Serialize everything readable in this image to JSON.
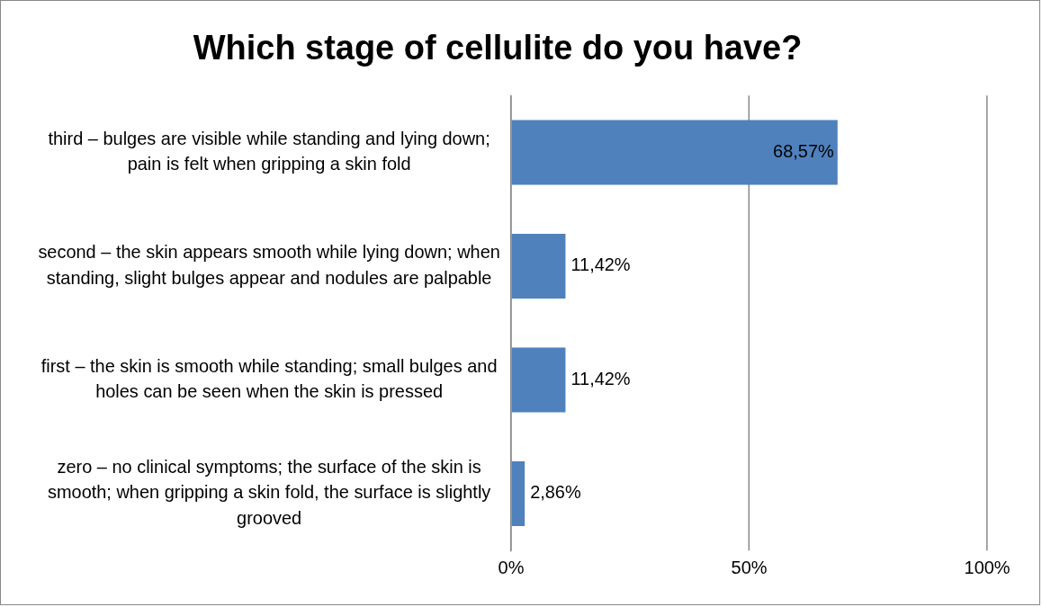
{
  "chart_data": {
    "type": "bar",
    "orientation": "horizontal",
    "title": "Which stage of cellulite do you have?",
    "categories": [
      "third – bulges are visible while standing and lying down; pain is felt when gripping a skin fold",
      "second – the skin appears smooth while lying down; when standing, slight bulges appear and nodules are palpable",
      "first – the skin is smooth while standing; small bulges and holes can be seen when the skin is pressed",
      "zero – no clinical symptoms; the surface of the skin is smooth; when gripping a skin fold, the surface is slightly grooved"
    ],
    "values": [
      68.57,
      11.42,
      11.42,
      2.86
    ],
    "value_labels": [
      "68,57%",
      "11,42%",
      "11,42%",
      "2,86%"
    ],
    "color": "#4f81bd",
    "xlim": [
      0,
      100
    ],
    "xticks": [
      {
        "value": 0,
        "label": "0%"
      },
      {
        "value": 50,
        "label": "50%"
      },
      {
        "value": 100,
        "label": "100%"
      }
    ],
    "grid": "x"
  }
}
